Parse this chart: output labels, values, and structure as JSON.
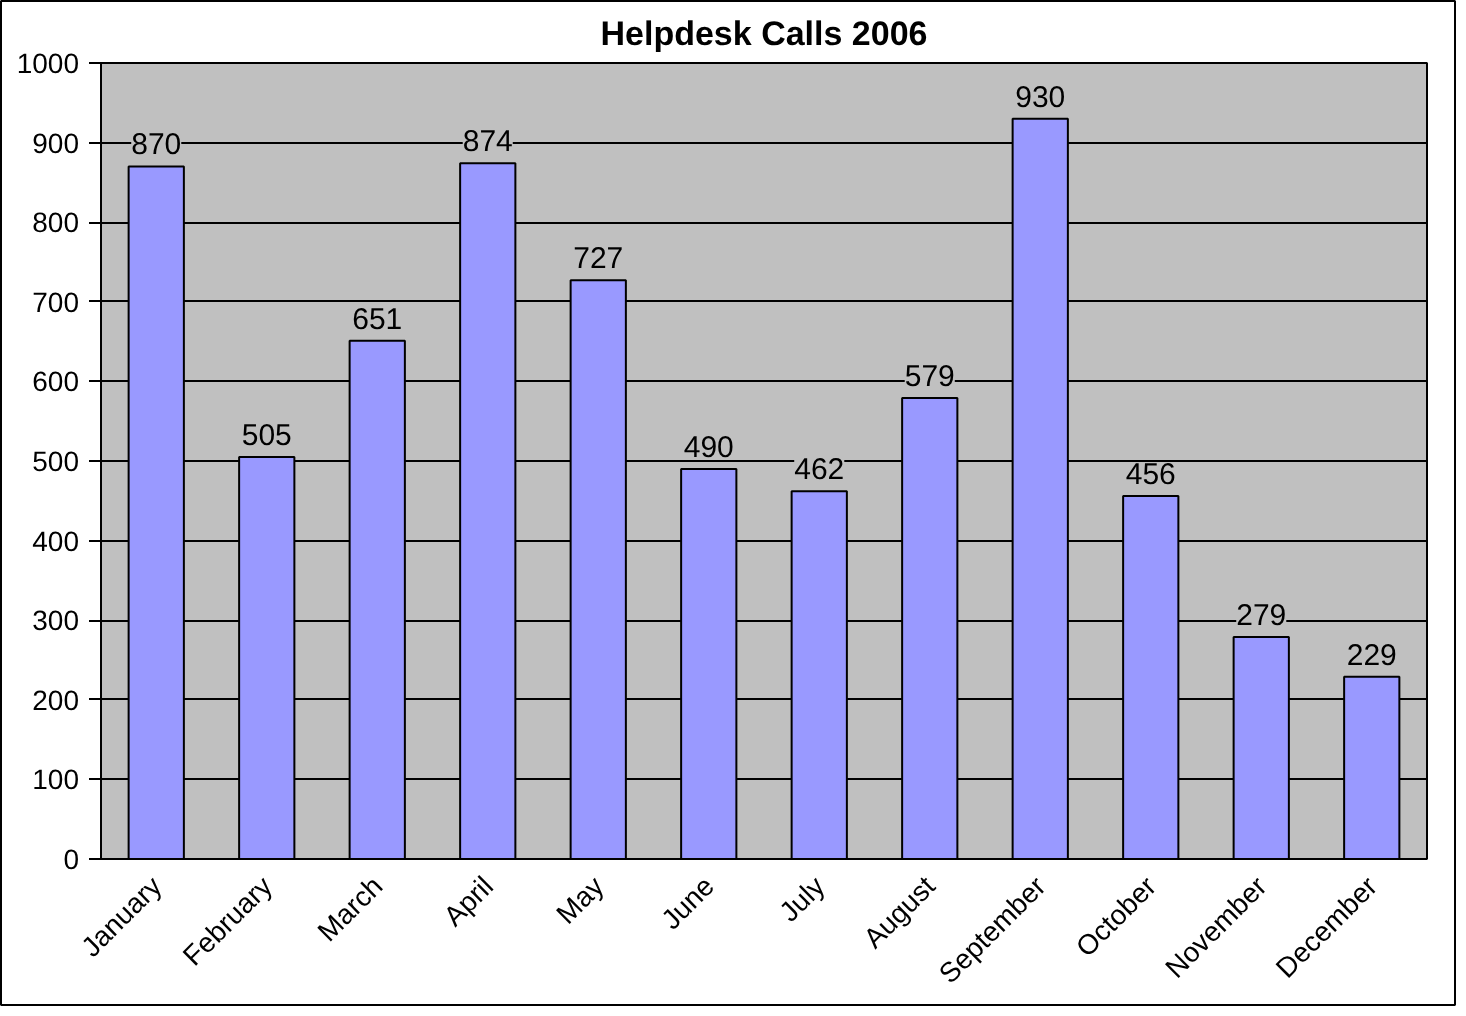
{
  "chart_data": {
    "type": "bar",
    "title": "Helpdesk Calls 2006",
    "categories": [
      "January",
      "February",
      "March",
      "April",
      "May",
      "June",
      "July",
      "August",
      "September",
      "October",
      "November",
      "December"
    ],
    "values": [
      870,
      505,
      651,
      874,
      727,
      490,
      462,
      579,
      930,
      456,
      279,
      229
    ],
    "color": "#9999ff",
    "ylim": [
      0,
      1000
    ],
    "yticks": [
      0,
      100,
      200,
      300,
      400,
      500,
      600,
      700,
      800,
      900,
      1000
    ],
    "grid": "y",
    "data_labels": true
  }
}
